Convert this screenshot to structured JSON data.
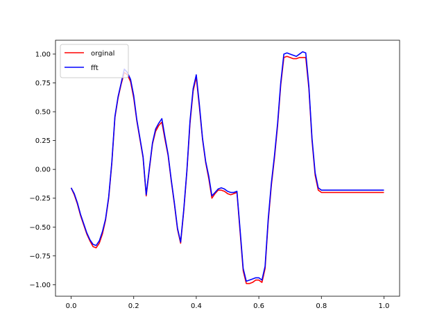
{
  "chart_data": {
    "type": "line",
    "title": "",
    "xlabel": "",
    "ylabel": "",
    "xlim": [
      -0.05,
      1.05
    ],
    "ylim": [
      -1.1,
      1.12
    ],
    "xticks": [
      0.0,
      0.2,
      0.4,
      0.6,
      0.8,
      1.0
    ],
    "xtick_labels": [
      "0.0",
      "0.2",
      "0.4",
      "0.6",
      "0.8",
      "1.0"
    ],
    "yticks": [
      -1.0,
      -0.75,
      -0.5,
      -0.25,
      0.0,
      0.25,
      0.5,
      0.75,
      1.0
    ],
    "ytick_labels": [
      "−1.00",
      "−0.75",
      "−0.50",
      "−0.25",
      "0.00",
      "0.25",
      "0.50",
      "0.75",
      "1.00"
    ],
    "grid": false,
    "legend": {
      "location": "top-left"
    },
    "x": [
      0.0,
      0.01,
      0.02,
      0.03,
      0.04,
      0.05,
      0.06,
      0.07,
      0.08,
      0.09,
      0.1,
      0.11,
      0.12,
      0.13,
      0.14,
      0.15,
      0.16,
      0.17,
      0.18,
      0.19,
      0.2,
      0.21,
      0.22,
      0.23,
      0.24,
      0.25,
      0.26,
      0.27,
      0.28,
      0.29,
      0.3,
      0.31,
      0.32,
      0.33,
      0.34,
      0.35,
      0.36,
      0.37,
      0.38,
      0.39,
      0.4,
      0.41,
      0.42,
      0.43,
      0.44,
      0.45,
      0.46,
      0.47,
      0.48,
      0.49,
      0.5,
      0.51,
      0.52,
      0.53,
      0.54,
      0.55,
      0.56,
      0.57,
      0.58,
      0.59,
      0.6,
      0.61,
      0.62,
      0.63,
      0.64,
      0.65,
      0.66,
      0.67,
      0.68,
      0.69,
      0.7,
      0.71,
      0.72,
      0.73,
      0.74,
      0.75,
      0.76,
      0.77,
      0.78,
      0.79,
      0.8,
      0.81,
      0.82,
      0.83,
      0.84,
      0.85,
      0.86,
      0.87,
      0.88,
      0.89,
      0.9,
      0.91,
      0.92,
      0.93,
      0.94,
      0.95,
      0.96,
      0.97,
      0.98,
      0.99,
      1.0
    ],
    "series": [
      {
        "name": "orginal",
        "color": "#ff0000",
        "values": [
          -0.16,
          -0.22,
          -0.3,
          -0.4,
          -0.48,
          -0.56,
          -0.62,
          -0.67,
          -0.68,
          -0.64,
          -0.56,
          -0.44,
          -0.25,
          0.05,
          0.45,
          0.62,
          0.74,
          0.84,
          0.82,
          0.76,
          0.62,
          0.42,
          0.26,
          0.1,
          -0.23,
          0.0,
          0.22,
          0.33,
          0.38,
          0.41,
          0.26,
          0.12,
          -0.1,
          -0.3,
          -0.52,
          -0.64,
          -0.36,
          -0.02,
          0.4,
          0.68,
          0.8,
          0.54,
          0.26,
          0.06,
          -0.08,
          -0.25,
          -0.21,
          -0.18,
          -0.18,
          -0.19,
          -0.21,
          -0.22,
          -0.21,
          -0.2,
          -0.54,
          -0.88,
          -0.99,
          -0.99,
          -0.98,
          -0.96,
          -0.96,
          -0.98,
          -0.86,
          -0.45,
          -0.14,
          0.1,
          0.38,
          0.73,
          0.97,
          0.98,
          0.97,
          0.96,
          0.96,
          0.97,
          0.97,
          0.97,
          0.7,
          0.25,
          -0.05,
          -0.18,
          -0.2,
          -0.2,
          -0.2,
          -0.2,
          -0.2,
          -0.2,
          -0.2,
          -0.2,
          -0.2,
          -0.2,
          -0.2,
          -0.2,
          -0.2,
          -0.2,
          -0.2,
          -0.2,
          -0.2,
          -0.2,
          -0.2,
          -0.2,
          -0.2
        ]
      },
      {
        "name": "fft",
        "color": "#0000ff",
        "values": [
          -0.16,
          -0.21,
          -0.29,
          -0.39,
          -0.47,
          -0.55,
          -0.61,
          -0.65,
          -0.66,
          -0.62,
          -0.54,
          -0.43,
          -0.24,
          0.06,
          0.46,
          0.63,
          0.75,
          0.87,
          0.84,
          0.78,
          0.64,
          0.43,
          0.27,
          0.11,
          -0.22,
          0.01,
          0.23,
          0.35,
          0.4,
          0.44,
          0.28,
          0.13,
          -0.09,
          -0.29,
          -0.51,
          -0.63,
          -0.35,
          -0.01,
          0.42,
          0.7,
          0.82,
          0.56,
          0.27,
          0.07,
          -0.06,
          -0.23,
          -0.2,
          -0.17,
          -0.16,
          -0.17,
          -0.19,
          -0.2,
          -0.2,
          -0.19,
          -0.52,
          -0.86,
          -0.97,
          -0.96,
          -0.95,
          -0.94,
          -0.94,
          -0.96,
          -0.84,
          -0.43,
          -0.12,
          0.12,
          0.4,
          0.75,
          1.0,
          1.01,
          1.0,
          0.99,
          0.98,
          1.0,
          1.02,
          1.01,
          0.72,
          0.27,
          -0.03,
          -0.16,
          -0.18,
          -0.18,
          -0.18,
          -0.18,
          -0.18,
          -0.18,
          -0.18,
          -0.18,
          -0.18,
          -0.18,
          -0.18,
          -0.18,
          -0.18,
          -0.18,
          -0.18,
          -0.18,
          -0.18,
          -0.18,
          -0.18,
          -0.18,
          -0.18
        ]
      }
    ]
  }
}
